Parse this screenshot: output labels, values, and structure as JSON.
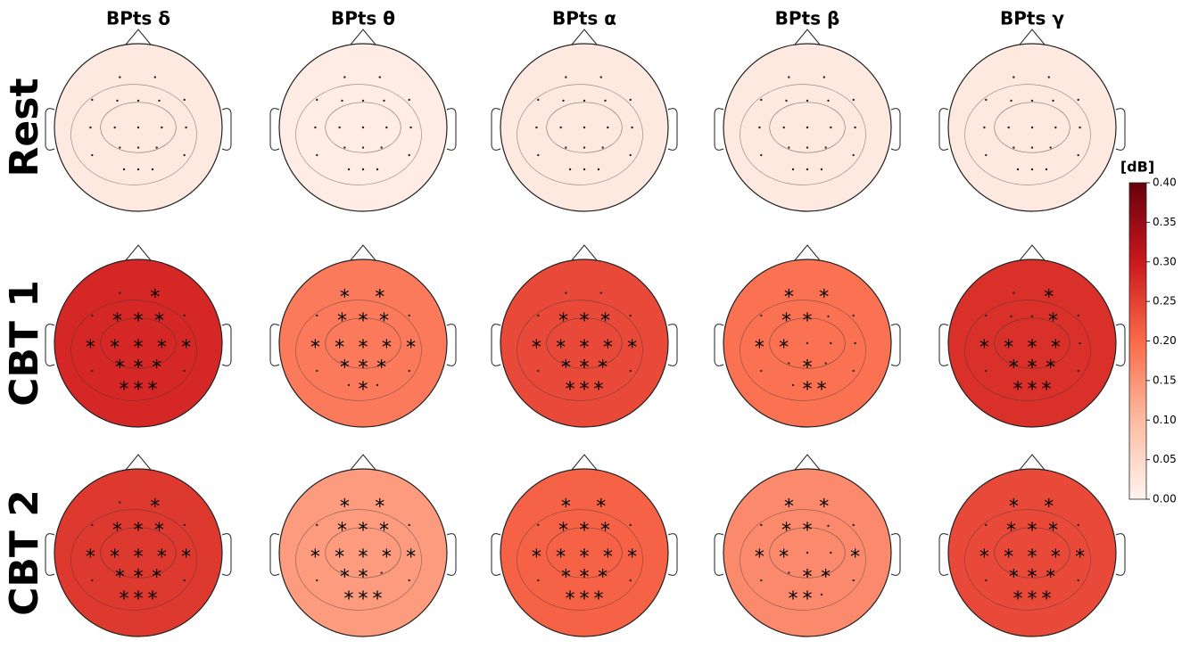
{
  "chart_data": {
    "type": "topomap",
    "columns": [
      "BPts δ",
      "BPts θ",
      "BPts α",
      "BPts β",
      "BPts γ"
    ],
    "rows": [
      {
        "label": "Rest",
        "values": [
          0.02,
          0.015,
          0.02,
          0.02,
          0.02
        ],
        "starred": [
          [],
          [],
          [],
          [],
          []
        ]
      },
      {
        "label": "CBT 1",
        "values": [
          0.28,
          0.18,
          0.24,
          0.19,
          0.27
        ],
        "starred": [
          [
            1,
            3,
            4,
            5,
            7,
            8,
            9,
            10,
            11,
            13,
            14,
            15,
            17,
            18,
            19
          ],
          [
            0,
            1,
            3,
            4,
            5,
            7,
            8,
            9,
            10,
            11,
            13,
            14,
            15,
            18
          ],
          [
            3,
            4,
            5,
            7,
            8,
            9,
            10,
            11,
            13,
            14,
            15,
            17,
            18,
            19
          ],
          [
            0,
            1,
            3,
            4,
            7,
            8,
            14,
            18,
            19
          ],
          [
            1,
            5,
            7,
            8,
            9,
            10,
            13,
            14,
            15,
            17,
            18,
            19
          ]
        ]
      },
      {
        "label": "CBT 2",
        "values": [
          0.26,
          0.14,
          0.21,
          0.16,
          0.24
        ],
        "starred": [
          [
            1,
            3,
            4,
            5,
            7,
            8,
            9,
            10,
            11,
            13,
            14,
            15,
            17,
            18,
            19
          ],
          [
            0,
            1,
            3,
            4,
            5,
            7,
            8,
            9,
            10,
            11,
            13,
            14,
            17,
            18,
            19
          ],
          [
            0,
            1,
            3,
            4,
            5,
            7,
            8,
            9,
            10,
            11,
            13,
            14,
            15,
            17,
            18,
            19
          ],
          [
            0,
            1,
            3,
            4,
            7,
            8,
            11,
            14,
            15,
            17,
            18
          ],
          [
            0,
            1,
            3,
            4,
            5,
            7,
            8,
            9,
            10,
            11,
            13,
            14,
            15,
            17,
            18,
            19
          ]
        ]
      }
    ],
    "marker": "*",
    "colorbar_label": "[dB]",
    "clim": [
      0,
      0.4
    ],
    "cticks": [
      {
        "value": 0,
        "label": "0.00"
      },
      {
        "value": 0.05,
        "label": "0.05"
      },
      {
        "value": 0.1,
        "label": "0.10"
      },
      {
        "value": 0.15,
        "label": "0.15"
      },
      {
        "value": 0.2,
        "label": "0.20"
      },
      {
        "value": 0.25,
        "label": "0.25"
      },
      {
        "value": 0.3,
        "label": "0.30"
      },
      {
        "value": 0.35,
        "label": "0.35"
      },
      {
        "value": 0.4,
        "label": "0.40"
      }
    ],
    "colormap": [
      "#fff5f0",
      "#fcbba1",
      "#fb6a4a",
      "#cb181d",
      "#67000d"
    ]
  }
}
